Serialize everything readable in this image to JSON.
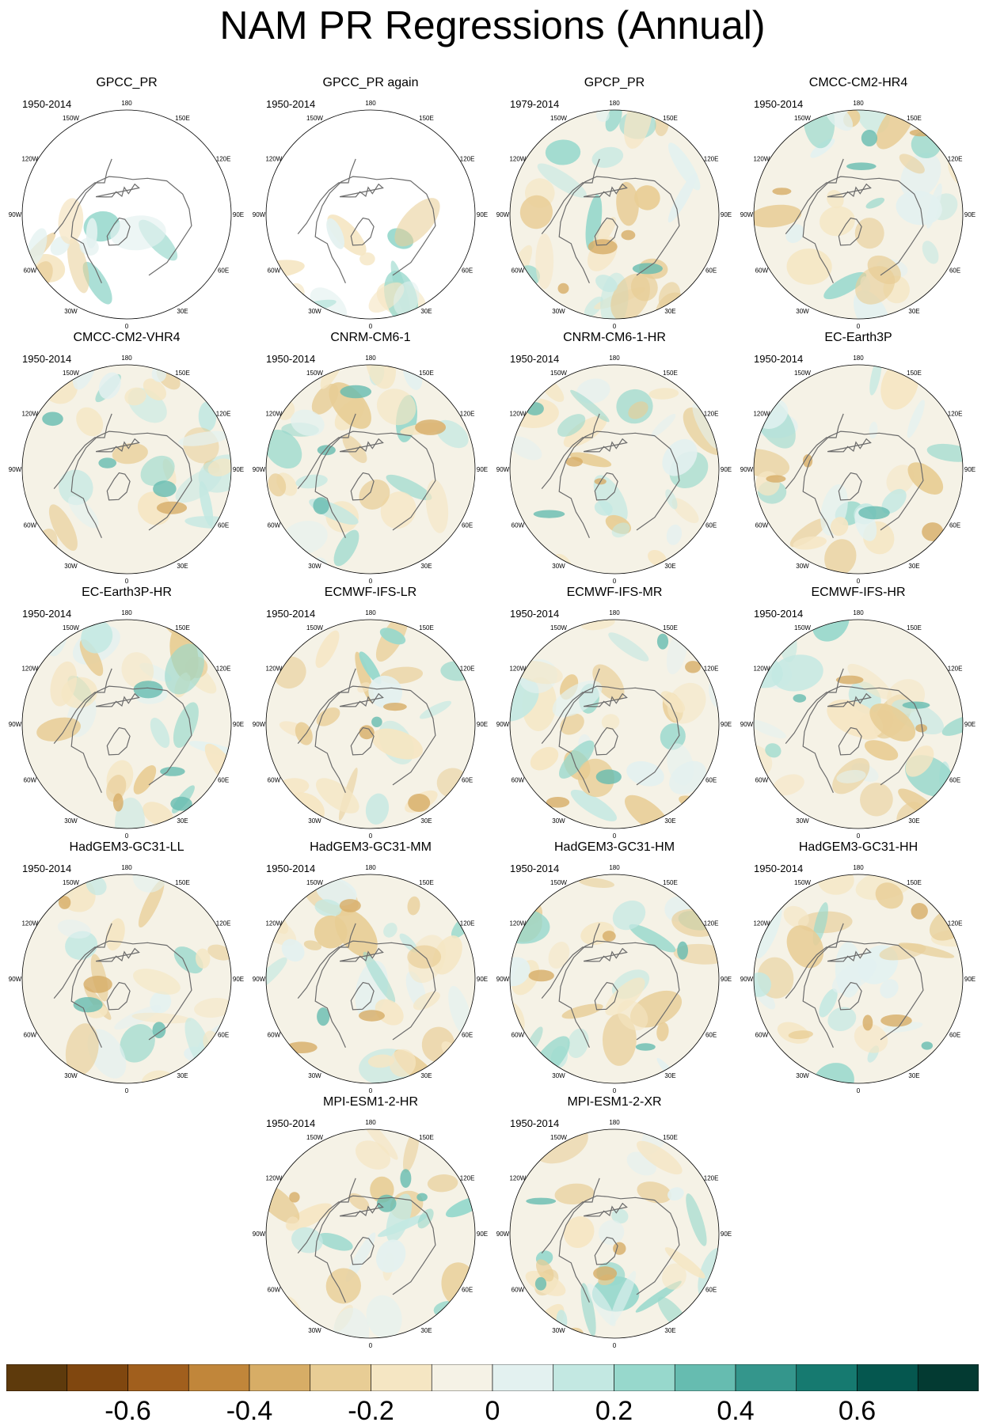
{
  "title": "NAM PR Regressions (Annual)",
  "lon_labels": [
    "180",
    "150E",
    "120E",
    "90E",
    "60E",
    "30E",
    "0",
    "30W",
    "60W",
    "90W",
    "120W",
    "150W"
  ],
  "colors": {
    "coast": "#6b6b6b",
    "neutral": "#f5f2e6",
    "missing": "#ffffff"
  },
  "panels": [
    {
      "name": "GPCC_PR",
      "period": "1950-2014",
      "missing_data": true
    },
    {
      "name": "GPCC_PR again",
      "period": "1950-2014",
      "missing_data": true
    },
    {
      "name": "GPCP_PR",
      "period": "1979-2014",
      "missing_data": false
    },
    {
      "name": "CMCC-CM2-HR4",
      "period": "1950-2014",
      "missing_data": false
    },
    {
      "name": "CMCC-CM2-VHR4",
      "period": "1950-2014",
      "missing_data": false
    },
    {
      "name": "CNRM-CM6-1",
      "period": "1950-2014",
      "missing_data": false
    },
    {
      "name": "CNRM-CM6-1-HR",
      "period": "1950-2014",
      "missing_data": false
    },
    {
      "name": "EC-Earth3P",
      "period": "1950-2014",
      "missing_data": false
    },
    {
      "name": "EC-Earth3P-HR",
      "period": "1950-2014",
      "missing_data": false
    },
    {
      "name": "ECMWF-IFS-LR",
      "period": "1950-2014",
      "missing_data": false
    },
    {
      "name": "ECMWF-IFS-MR",
      "period": "1950-2014",
      "missing_data": false
    },
    {
      "name": "ECMWF-IFS-HR",
      "period": "1950-2014",
      "missing_data": false
    },
    {
      "name": "HadGEM3-GC31-LL",
      "period": "1950-2014",
      "missing_data": false
    },
    {
      "name": "HadGEM3-GC31-MM",
      "period": "1950-2014",
      "missing_data": false
    },
    {
      "name": "HadGEM3-GC31-HM",
      "period": "1950-2014",
      "missing_data": false
    },
    {
      "name": "HadGEM3-GC31-HH",
      "period": "1950-2014",
      "missing_data": false
    },
    {
      "name": "MPI-ESM1-2-HR",
      "period": "1950-2014",
      "missing_data": false
    },
    {
      "name": "MPI-ESM1-2-XR",
      "period": "1950-2014",
      "missing_data": false
    }
  ],
  "colorbar": {
    "colors": [
      "#5e3a0c",
      "#80470f",
      "#a15f1d",
      "#c1863a",
      "#d7ad66",
      "#e8cd95",
      "#f5e6c3",
      "#f5f2e6",
      "#e3f1f0",
      "#c3e8e2",
      "#97d8cc",
      "#66bcb0",
      "#34968c",
      "#167a70",
      "#05574f",
      "#033a32"
    ],
    "tick_labels": [
      {
        "value": -0.6,
        "text": "-0.6"
      },
      {
        "value": -0.4,
        "text": "-0.4"
      },
      {
        "value": -0.2,
        "text": "-0.2"
      },
      {
        "value": 0,
        "text": "0"
      },
      {
        "value": 0.2,
        "text": "0.2"
      },
      {
        "value": 0.4,
        "text": "0.4"
      },
      {
        "value": 0.6,
        "text": "0.6"
      }
    ],
    "range": [
      -0.8,
      0.8
    ]
  }
}
